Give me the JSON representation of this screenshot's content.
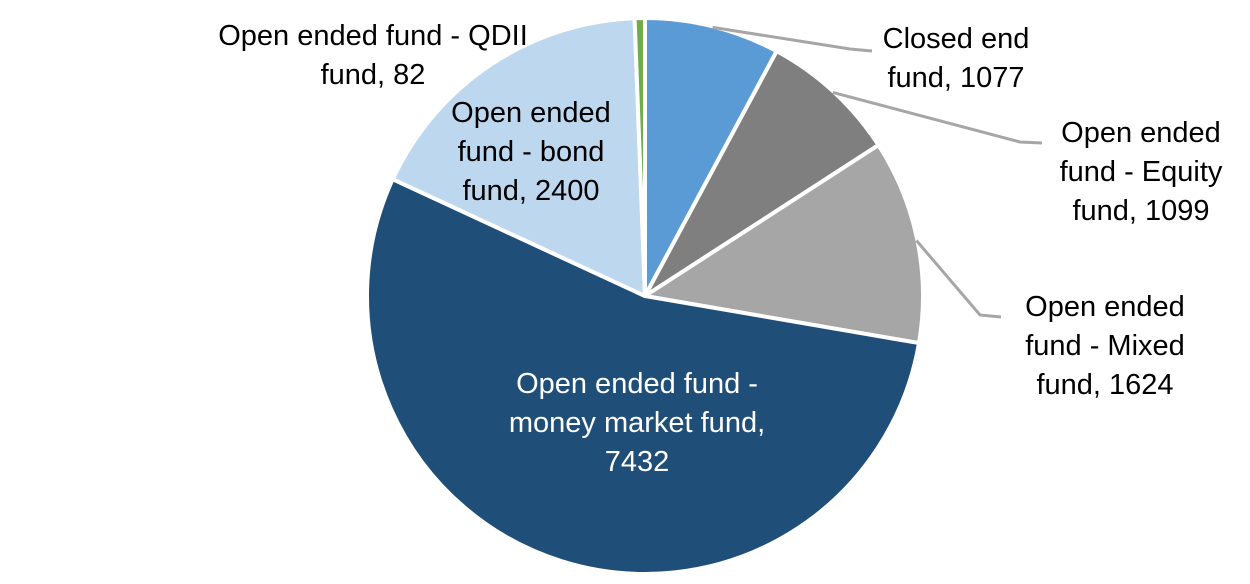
{
  "chart_data": {
    "type": "pie",
    "title": "",
    "start_angle_deg": 0,
    "direction": "clockwise",
    "background_color": "#FFFFFF",
    "slice_border_color": "#FFFFFF",
    "leader_line_color": "#A6A6A6",
    "series": [
      {
        "id": "closed-end-fund",
        "label": "Closed end fund",
        "value": 1077,
        "color": "#5B9BD5",
        "label_color": "#000000",
        "label_lines": [
          "Closed end",
          "fund, 1077"
        ]
      },
      {
        "id": "equity-fund",
        "label": "Open ended fund - Equity fund",
        "value": 1099,
        "color": "#7F7F7F",
        "label_color": "#000000",
        "label_lines": [
          "Open ended",
          "fund - Equity",
          "fund, 1099"
        ]
      },
      {
        "id": "mixed-fund",
        "label": "Open ended fund - Mixed fund",
        "value": 1624,
        "color": "#A6A6A6",
        "label_color": "#000000",
        "label_lines": [
          "Open ended",
          "fund - Mixed",
          "fund, 1624"
        ]
      },
      {
        "id": "money-market-fund",
        "label": "Open ended fund - money market fund",
        "value": 7432,
        "color": "#1F4E79",
        "label_color": "#FFFFFF",
        "label_lines": [
          "Open ended fund -",
          "money market fund,",
          "7432"
        ]
      },
      {
        "id": "bond-fund",
        "label": "Open ended fund - bond fund",
        "value": 2400,
        "color": "#BDD7EE",
        "label_color": "#000000",
        "label_lines": [
          "Open ended",
          "fund - bond",
          "fund, 2400"
        ]
      },
      {
        "id": "qdii-fund",
        "label": "Open ended fund - QDII fund",
        "value": 82,
        "color": "#70AD47",
        "label_color": "#000000",
        "label_lines": [
          "Open ended fund - QDII",
          "fund, 82"
        ]
      }
    ]
  }
}
